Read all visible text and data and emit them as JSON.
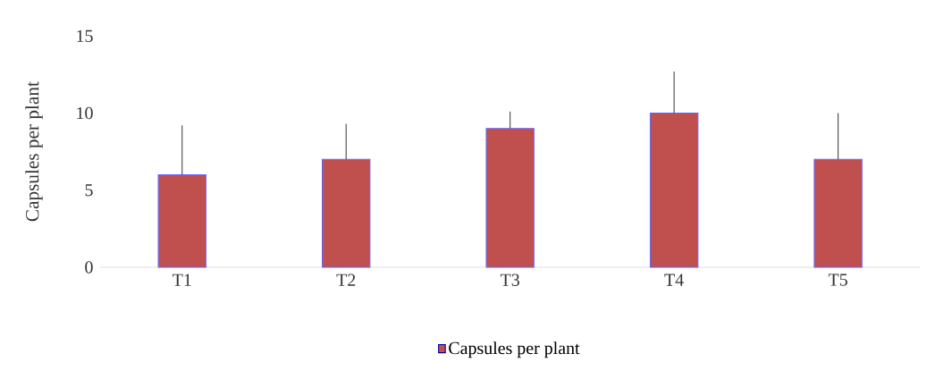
{
  "chart_data": {
    "type": "bar",
    "ylabel": "Capsules per plant",
    "categories": [
      "T1",
      "T2",
      "T3",
      "T4",
      "T5"
    ],
    "series": [
      {
        "name": "Capsules per plant",
        "color": "#c0504d",
        "values": [
          6,
          7,
          9,
          10,
          7
        ],
        "errors": [
          [
            6,
            9.2
          ],
          [
            7,
            9.3
          ],
          [
            9,
            10.1
          ],
          [
            10,
            12.7
          ],
          [
            7,
            10
          ]
        ]
      }
    ],
    "ylim": [
      0,
      15
    ],
    "yticks": [
      0,
      5,
      10,
      15
    ],
    "legend": "bottom"
  }
}
